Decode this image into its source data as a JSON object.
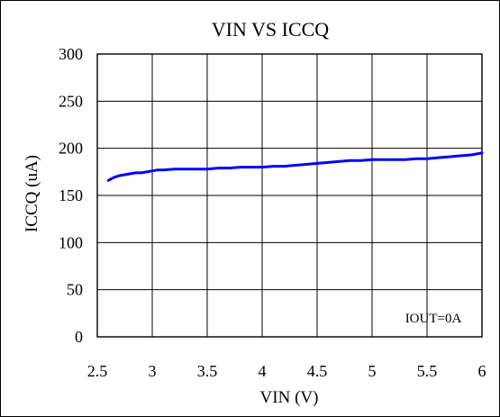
{
  "chart_data": {
    "type": "line",
    "title": "VIN VS ICCQ",
    "xlabel": "VIN (V)",
    "ylabel": "ICCQ (uA)",
    "xlim": [
      2.5,
      6
    ],
    "ylim": [
      0,
      300
    ],
    "xticks": [
      "2.5",
      "3",
      "3.5",
      "4",
      "4.5",
      "5",
      "5.5",
      "6"
    ],
    "xtick_values": [
      2.5,
      3,
      3.5,
      4,
      4.5,
      5,
      5.5,
      6
    ],
    "yticks": [
      "0",
      "50",
      "100",
      "150",
      "200",
      "250",
      "300"
    ],
    "ytick_values": [
      0,
      50,
      100,
      150,
      200,
      250,
      300
    ],
    "grid": true,
    "annotation": "IOUT=0A",
    "series": [
      {
        "color": "#0000ff",
        "x": [
          2.6,
          2.65,
          2.7,
          2.75,
          2.8,
          2.85,
          2.9,
          2.95,
          3.0,
          3.05,
          3.1,
          3.2,
          3.3,
          3.4,
          3.5,
          3.6,
          3.7,
          3.8,
          3.9,
          4.0,
          4.1,
          4.2,
          4.3,
          4.4,
          4.5,
          4.6,
          4.7,
          4.8,
          4.9,
          5.0,
          5.1,
          5.2,
          5.3,
          5.4,
          5.5,
          5.6,
          5.7,
          5.8,
          5.9,
          6.0
        ],
        "y": [
          166,
          169,
          171,
          172,
          173,
          174,
          174,
          175,
          176,
          177,
          177,
          178,
          178,
          178,
          178,
          179,
          179,
          180,
          180,
          180,
          181,
          181,
          182,
          183,
          184,
          185,
          186,
          187,
          187,
          188,
          188,
          188,
          188,
          189,
          189,
          190,
          191,
          192,
          193,
          195
        ]
      }
    ]
  }
}
